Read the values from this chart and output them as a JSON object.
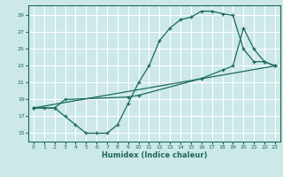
{
  "xlabel": "Humidex (Indice chaleur)",
  "bg_color": "#cde8e8",
  "grid_color": "#ffffff",
  "line_color": "#1a6b5a",
  "xlim": [
    -0.5,
    23.5
  ],
  "ylim": [
    14.0,
    30.2
  ],
  "yticks": [
    15,
    17,
    19,
    21,
    23,
    25,
    27,
    29
  ],
  "xticks": [
    0,
    1,
    2,
    3,
    4,
    5,
    6,
    7,
    8,
    9,
    10,
    11,
    12,
    13,
    14,
    15,
    16,
    17,
    18,
    19,
    20,
    21,
    22,
    23
  ],
  "series1_x": [
    0,
    1,
    2,
    3,
    4,
    5,
    6,
    7,
    8,
    9,
    10,
    11,
    12,
    13,
    14,
    15,
    16,
    17,
    18,
    19,
    20,
    21,
    22,
    23
  ],
  "series1_y": [
    18.0,
    18.0,
    18.0,
    17.0,
    16.0,
    15.0,
    15.0,
    15.0,
    16.0,
    18.5,
    21.0,
    23.0,
    26.0,
    27.5,
    28.5,
    28.8,
    29.5,
    29.5,
    29.2,
    29.0,
    25.0,
    23.5,
    23.5,
    23.0
  ],
  "series2_x": [
    0,
    2,
    3,
    9,
    10,
    16,
    18,
    19,
    20,
    21,
    22,
    23
  ],
  "series2_y": [
    18.0,
    18.0,
    19.0,
    19.3,
    19.5,
    21.5,
    22.5,
    23.0,
    27.5,
    25.0,
    23.5,
    23.0
  ],
  "series3_x": [
    0,
    23
  ],
  "series3_y": [
    18.0,
    23.0
  ]
}
